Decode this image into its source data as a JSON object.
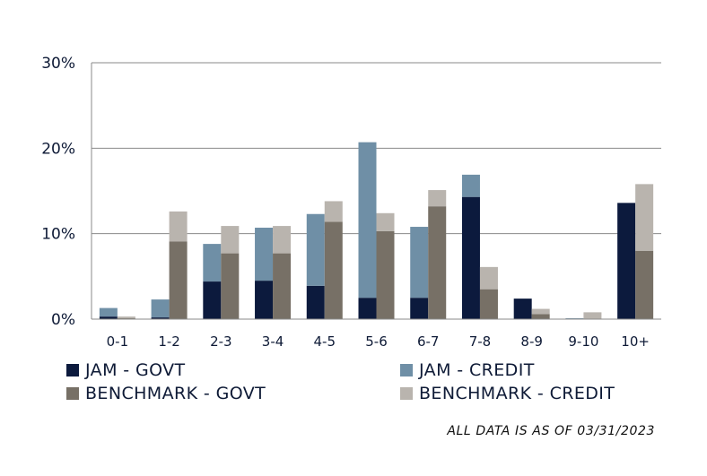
{
  "chart_data": {
    "type": "bar",
    "categories": [
      "0-1",
      "1-2",
      "2-3",
      "3-4",
      "4-5",
      "5-6",
      "6-7",
      "7-8",
      "8-9",
      "9-10",
      "10+"
    ],
    "stacks": [
      {
        "stack": "JAM",
        "series": [
          {
            "name": "JAM - GOVT",
            "color": "#0c1a3d",
            "values": [
              0.3,
              0.2,
              4.4,
              4.5,
              3.9,
              2.5,
              2.5,
              14.3,
              2.4,
              0,
              13.6
            ]
          },
          {
            "name": "JAM - CREDIT",
            "color": "#6f8fa6",
            "values": [
              1.0,
              2.1,
              4.4,
              6.2,
              8.4,
              18.2,
              8.3,
              2.6,
              0,
              0.1,
              0
            ]
          }
        ]
      },
      {
        "stack": "BENCHMARK",
        "series": [
          {
            "name": "BENCHMARK - GOVT",
            "color": "#777066",
            "values": [
              0.1,
              9.1,
              7.7,
              7.7,
              11.4,
              10.3,
              13.2,
              3.5,
              0.6,
              0,
              8.0
            ]
          },
          {
            "name": "BENCHMARK - CREDIT",
            "color": "#b9b4ae",
            "values": [
              0.2,
              3.5,
              3.2,
              3.2,
              2.4,
              2.1,
              1.9,
              2.6,
              0.6,
              0.8,
              7.8
            ]
          }
        ]
      }
    ],
    "yticks": [
      "0%",
      "10%",
      "20%",
      "30%"
    ],
    "ylim": [
      0,
      30
    ],
    "grid": true,
    "legend_position": "bottom",
    "footnote": "ALL DATA IS AS OF 03/31/2023"
  },
  "legend": [
    {
      "label": "JAM - GOVT",
      "color": "#0c1a3d"
    },
    {
      "label": "JAM - CREDIT",
      "color": "#6f8fa6"
    },
    {
      "label": "BENCHMARK - GOVT",
      "color": "#777066"
    },
    {
      "label": "BENCHMARK - CREDIT",
      "color": "#b9b4ae"
    }
  ]
}
